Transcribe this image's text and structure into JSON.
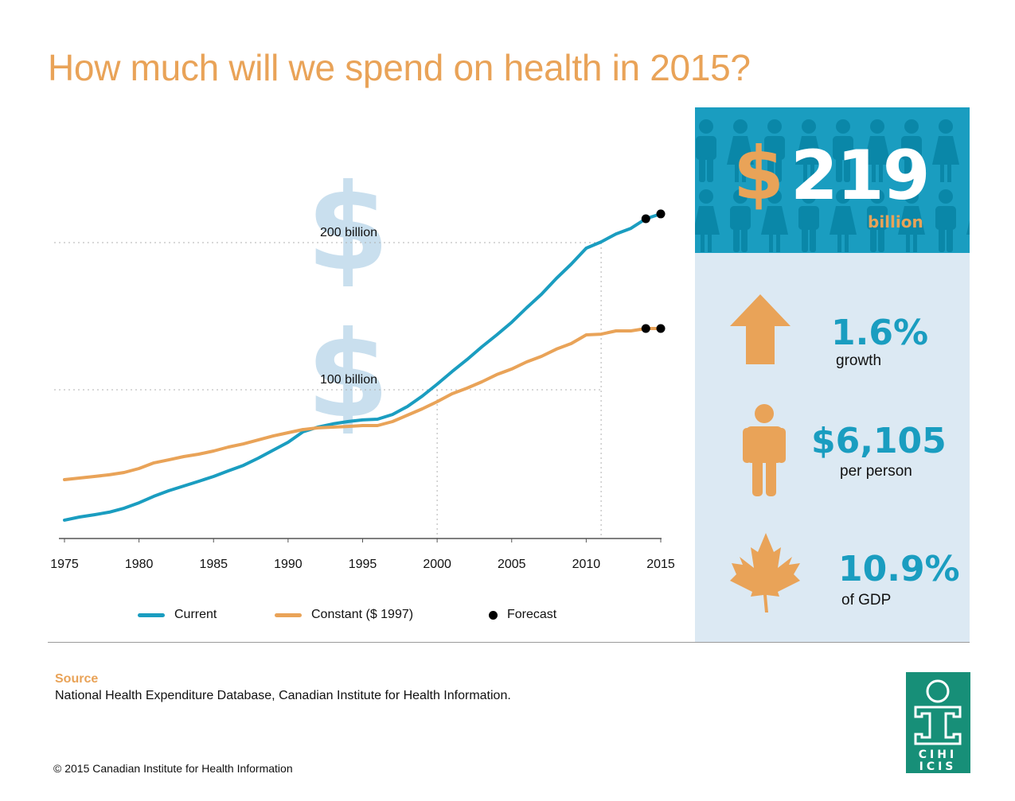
{
  "header": {
    "title": "How much will we spend on health in 2015?"
  },
  "chart_data": {
    "type": "line",
    "title": "How much will we spend on health in 2015?",
    "xlabel": "",
    "ylabel": "",
    "x": [
      1975,
      1976,
      1977,
      1978,
      1979,
      1980,
      1981,
      1982,
      1983,
      1984,
      1985,
      1986,
      1987,
      1988,
      1989,
      1990,
      1991,
      1992,
      1993,
      1994,
      1995,
      1996,
      1997,
      1998,
      1999,
      2000,
      2001,
      2002,
      2003,
      2004,
      2005,
      2006,
      2007,
      2008,
      2009,
      2010,
      2011,
      2012,
      2013,
      2014,
      2015
    ],
    "xticks": [
      "1975",
      "1980",
      "1985",
      "1990",
      "1995",
      "2000",
      "2005",
      "2010",
      "2015"
    ],
    "xlim": [
      1975,
      2015
    ],
    "ylim": [
      10,
      250
    ],
    "gridlines": [
      {
        "value": 100,
        "label": "100 billion"
      },
      {
        "value": 200,
        "label": "200 billion"
      }
    ],
    "reference_years": [
      2000,
      2011
    ],
    "series": [
      {
        "name": "Current",
        "color": "#1a9dc0",
        "values": [
          11.4,
          13.5,
          15.1,
          16.8,
          19.5,
          23.2,
          27.6,
          31.4,
          34.6,
          37.8,
          41.1,
          44.9,
          48.6,
          53.5,
          58.9,
          64.3,
          71.4,
          74.6,
          76.8,
          78.4,
          79.5,
          80.0,
          83.2,
          88.6,
          95.7,
          103.8,
          112.4,
          120.5,
          129.2,
          137.3,
          145.9,
          155.7,
          164.9,
          175.7,
          185.4,
          196.2,
          200.5,
          205.9,
          209.7,
          216.2,
          219.5
        ],
        "forecast_years": [
          2014,
          2015
        ]
      },
      {
        "name": "Constant ($ 1997)",
        "color": "#e9a358",
        "values": [
          38.9,
          40.0,
          41.1,
          42.2,
          43.8,
          46.5,
          50.3,
          52.4,
          54.6,
          56.2,
          58.4,
          61.1,
          63.2,
          65.9,
          68.6,
          70.8,
          73.0,
          74.1,
          74.6,
          75.1,
          75.7,
          75.7,
          78.4,
          82.7,
          87.0,
          91.9,
          97.3,
          101.1,
          105.4,
          110.3,
          114.1,
          118.9,
          122.7,
          127.6,
          131.4,
          137.3,
          137.8,
          140.0,
          140.0,
          141.6,
          141.6
        ],
        "forecast_years": [
          2014,
          2015
        ]
      }
    ],
    "legend": [
      {
        "label": "Current",
        "kind": "line",
        "color": "#1a9dc0"
      },
      {
        "label": "Constant ($ 1997)",
        "kind": "line",
        "color": "#e9a358"
      },
      {
        "label": "Forecast",
        "kind": "dot",
        "color": "#000000"
      }
    ],
    "legend_position": "bottom"
  },
  "panel": {
    "headline": {
      "currency": "$",
      "amount": "219",
      "unit": "billion"
    },
    "stats": [
      {
        "icon": "arrow-up-icon",
        "value": "1.6%",
        "label": "growth"
      },
      {
        "icon": "person-icon",
        "value": "$6,105",
        "label": "per person"
      },
      {
        "icon": "maple-leaf-icon",
        "value": "10.9%",
        "label": "of GDP"
      }
    ]
  },
  "footer": {
    "source_heading": "Source",
    "source_text": "National Health Expenditure Database, Canadian Institute for Health Information.",
    "copyright": "© 2015 Canadian Institute for Health Information",
    "logo_text_top": "CIHI",
    "logo_text_bottom": "ICIS"
  },
  "colors": {
    "accent_orange": "#e9a358",
    "accent_blue": "#1a9dc0",
    "panel_bg": "#dce9f3",
    "logo_green": "#178f78"
  }
}
